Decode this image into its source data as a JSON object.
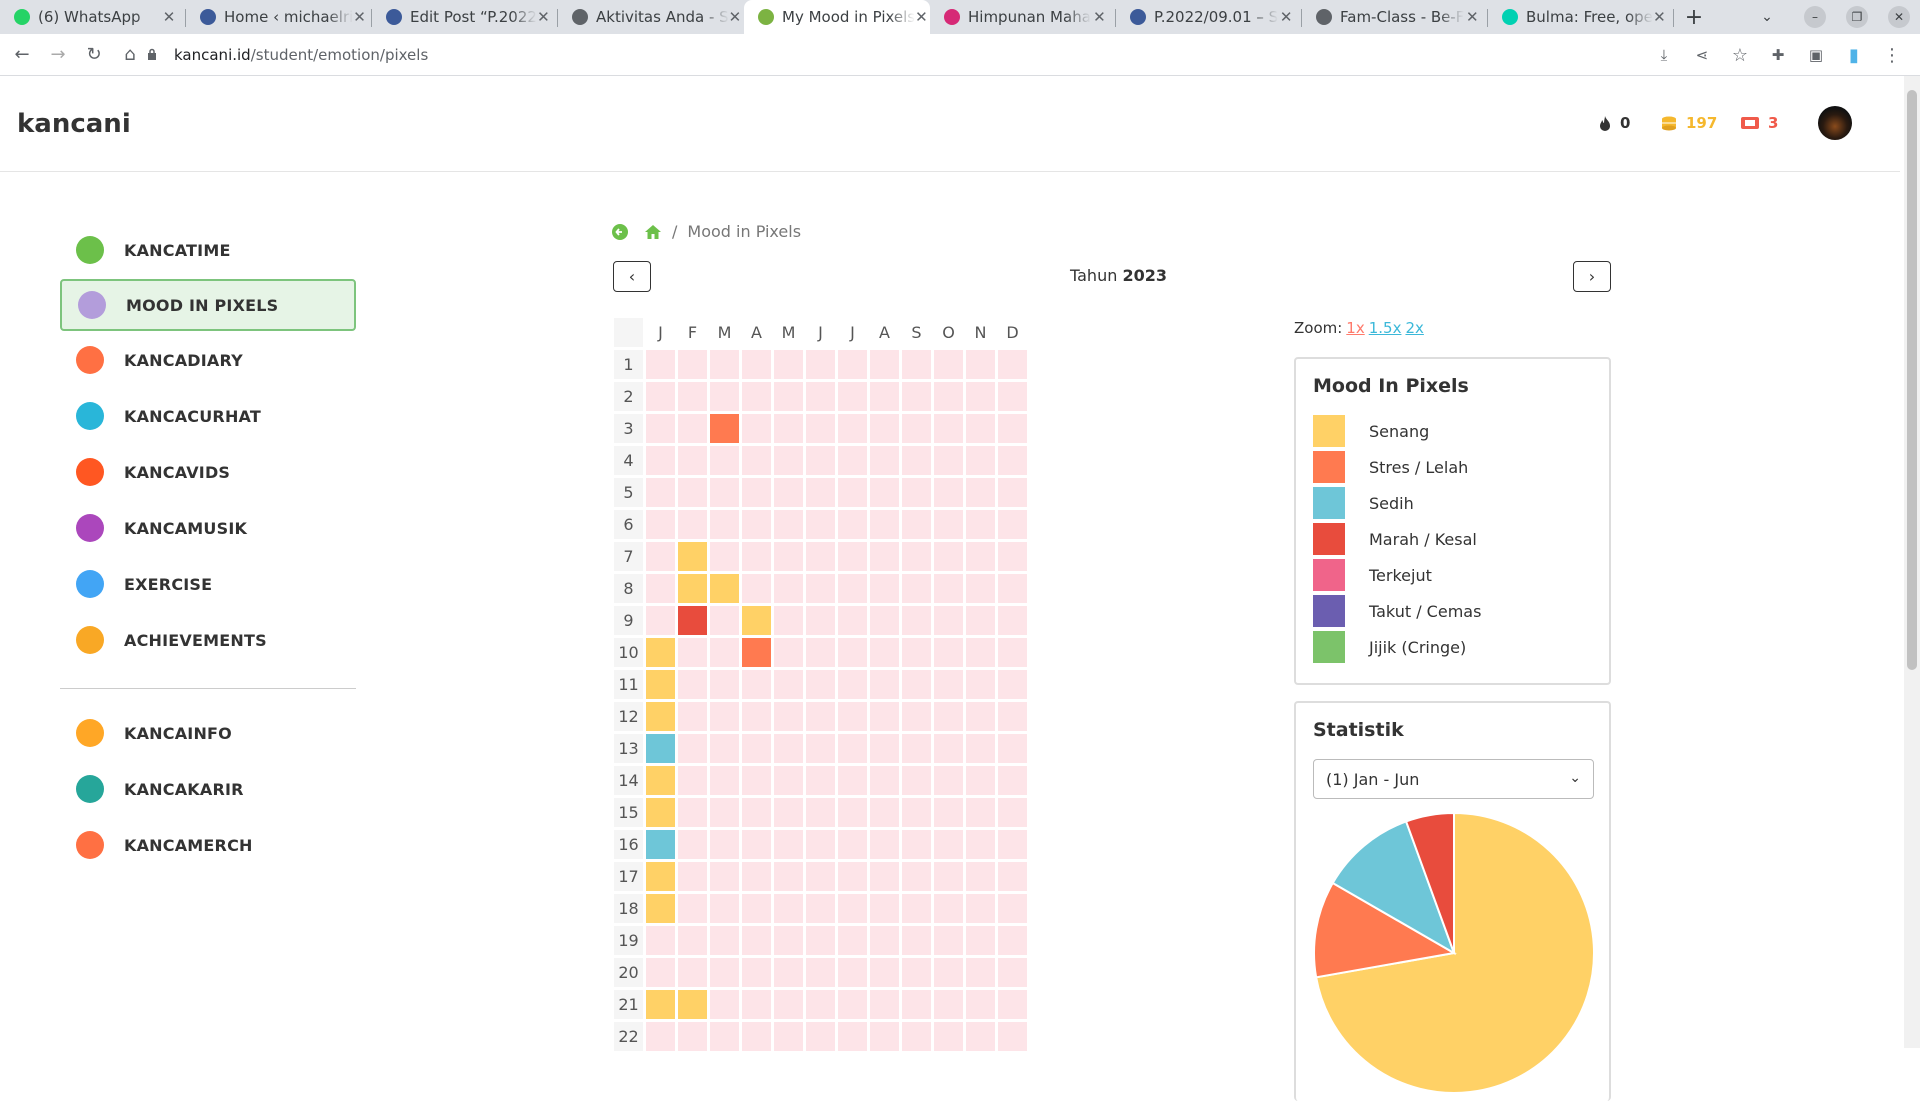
{
  "browser": {
    "tabs": [
      {
        "title": "(6) WhatsApp",
        "favicon": "whatsapp-icon",
        "color": "#25d366"
      },
      {
        "title": "Home ‹ michaelri",
        "favicon": "wordpress-icon",
        "color": "#3c5a99"
      },
      {
        "title": "Edit Post “P.2022",
        "favicon": "wordpress-icon",
        "color": "#3c5a99"
      },
      {
        "title": "Aktivitas Anda - S",
        "favicon": "globe-icon",
        "color": "#5f6368"
      },
      {
        "title": "My Mood in Pixels",
        "favicon": "kancani-icon",
        "color": "#7cb342"
      },
      {
        "title": "Himpunan Maha",
        "favicon": "instagram-icon",
        "color": "#d62976"
      },
      {
        "title": "P.2022/09.01 – S",
        "favicon": "wordpress-icon",
        "color": "#3c5a99"
      },
      {
        "title": "Fam-Class - Be-F",
        "favicon": "globe-icon",
        "color": "#5f6368"
      },
      {
        "title": "Bulma: Free, ope",
        "favicon": "bulma-icon",
        "color": "#00d1b2"
      }
    ],
    "active_tab": 4,
    "url_host": "kancani.id",
    "url_path": "/student/emotion/pixels"
  },
  "header": {
    "logo": "kancani",
    "streak": "0",
    "coins": "197",
    "tickets": "3"
  },
  "sidebar": {
    "items": [
      {
        "label": "KANCATIME",
        "icon": "smile-icon",
        "color": "#6cc04a"
      },
      {
        "label": "MOOD IN PIXELS",
        "icon": "calendar-icon",
        "color": "#b39ddb"
      },
      {
        "label": "KANCADIARY",
        "icon": "diary-heart-icon",
        "color": "#ff7043"
      },
      {
        "label": "KANCACURHAT",
        "icon": "chat-bubbles-icon",
        "color": "#29b6d9"
      },
      {
        "label": "KANCAVIDS",
        "icon": "play-icon",
        "color": "#ff5722"
      },
      {
        "label": "KANCAMUSIK",
        "icon": "headphones-icon",
        "color": "#ab47bc"
      },
      {
        "label": "EXERCISE",
        "icon": "pencil-icon",
        "color": "#42a5f5"
      },
      {
        "label": "ACHIEVEMENTS",
        "icon": "trophy-icon",
        "color": "#f9a825"
      }
    ],
    "items2": [
      {
        "label": "KANCAINFO",
        "icon": "mail-icon",
        "color": "#ffa726"
      },
      {
        "label": "KANCAKARIR",
        "icon": "briefcase-icon",
        "color": "#26a69a"
      },
      {
        "label": "KANCAMERCH",
        "icon": "shopping-bag-icon",
        "color": "#ff7043"
      }
    ],
    "active_index": 1
  },
  "breadcrumb": {
    "current": "Mood in Pixels"
  },
  "year": {
    "prefix": "Tahun",
    "value": "2023"
  },
  "grid": {
    "months": [
      "J",
      "F",
      "M",
      "A",
      "M",
      "J",
      "J",
      "A",
      "S",
      "O",
      "N",
      "D"
    ],
    "days": [
      "1",
      "2",
      "3",
      "4",
      "5",
      "6",
      "7",
      "8",
      "9",
      "10",
      "11",
      "12",
      "13",
      "14",
      "15",
      "16",
      "17",
      "18",
      "19",
      "20",
      "21",
      "22"
    ],
    "empty_color": "#fde4e8",
    "entries": [
      {
        "day": 3,
        "month": 3,
        "mood": "Stres / Lelah"
      },
      {
        "day": 7,
        "month": 2,
        "mood": "Senang"
      },
      {
        "day": 8,
        "month": 2,
        "mood": "Senang"
      },
      {
        "day": 8,
        "month": 3,
        "mood": "Senang"
      },
      {
        "day": 9,
        "month": 2,
        "mood": "Marah / Kesal"
      },
      {
        "day": 9,
        "month": 4,
        "mood": "Senang"
      },
      {
        "day": 10,
        "month": 1,
        "mood": "Senang"
      },
      {
        "day": 10,
        "month": 4,
        "mood": "Stres / Lelah"
      },
      {
        "day": 11,
        "month": 1,
        "mood": "Senang"
      },
      {
        "day": 12,
        "month": 1,
        "mood": "Senang"
      },
      {
        "day": 13,
        "month": 1,
        "mood": "Sedih"
      },
      {
        "day": 14,
        "month": 1,
        "mood": "Senang"
      },
      {
        "day": 15,
        "month": 1,
        "mood": "Senang"
      },
      {
        "day": 16,
        "month": 1,
        "mood": "Sedih"
      },
      {
        "day": 17,
        "month": 1,
        "mood": "Senang"
      },
      {
        "day": 18,
        "month": 1,
        "mood": "Senang"
      },
      {
        "day": 21,
        "month": 1,
        "mood": "Senang"
      },
      {
        "day": 21,
        "month": 2,
        "mood": "Senang"
      }
    ]
  },
  "zoom": {
    "label": "Zoom:",
    "options": [
      "1x",
      "1.5x",
      "2x"
    ],
    "active": 0,
    "active_color": "#ff7a6b",
    "link_color": "#3bb8d9"
  },
  "legend": {
    "title": "Mood In Pixels",
    "items": [
      {
        "label": "Senang",
        "color": "#ffd166"
      },
      {
        "label": "Stres / Lelah",
        "color": "#ff7a50"
      },
      {
        "label": "Sedih",
        "color": "#6ec6d8"
      },
      {
        "label": "Marah / Kesal",
        "color": "#e84c3d"
      },
      {
        "label": "Terkejut",
        "color": "#f0648a"
      },
      {
        "label": "Takut / Cemas",
        "color": "#6b5eb0"
      },
      {
        "label": "Jijik (Cringe)",
        "color": "#7cc36a"
      }
    ]
  },
  "stats": {
    "title": "Statistik",
    "select_value": "(1) Jan - Jun"
  },
  "chart_data": {
    "type": "pie",
    "categories": [
      "Senang",
      "Stres / Lelah",
      "Sedih",
      "Marah / Kesal"
    ],
    "values": [
      13,
      2,
      2,
      1
    ],
    "colors": [
      "#ffd166",
      "#ff7a50",
      "#6ec6d8",
      "#e84c3d"
    ]
  }
}
